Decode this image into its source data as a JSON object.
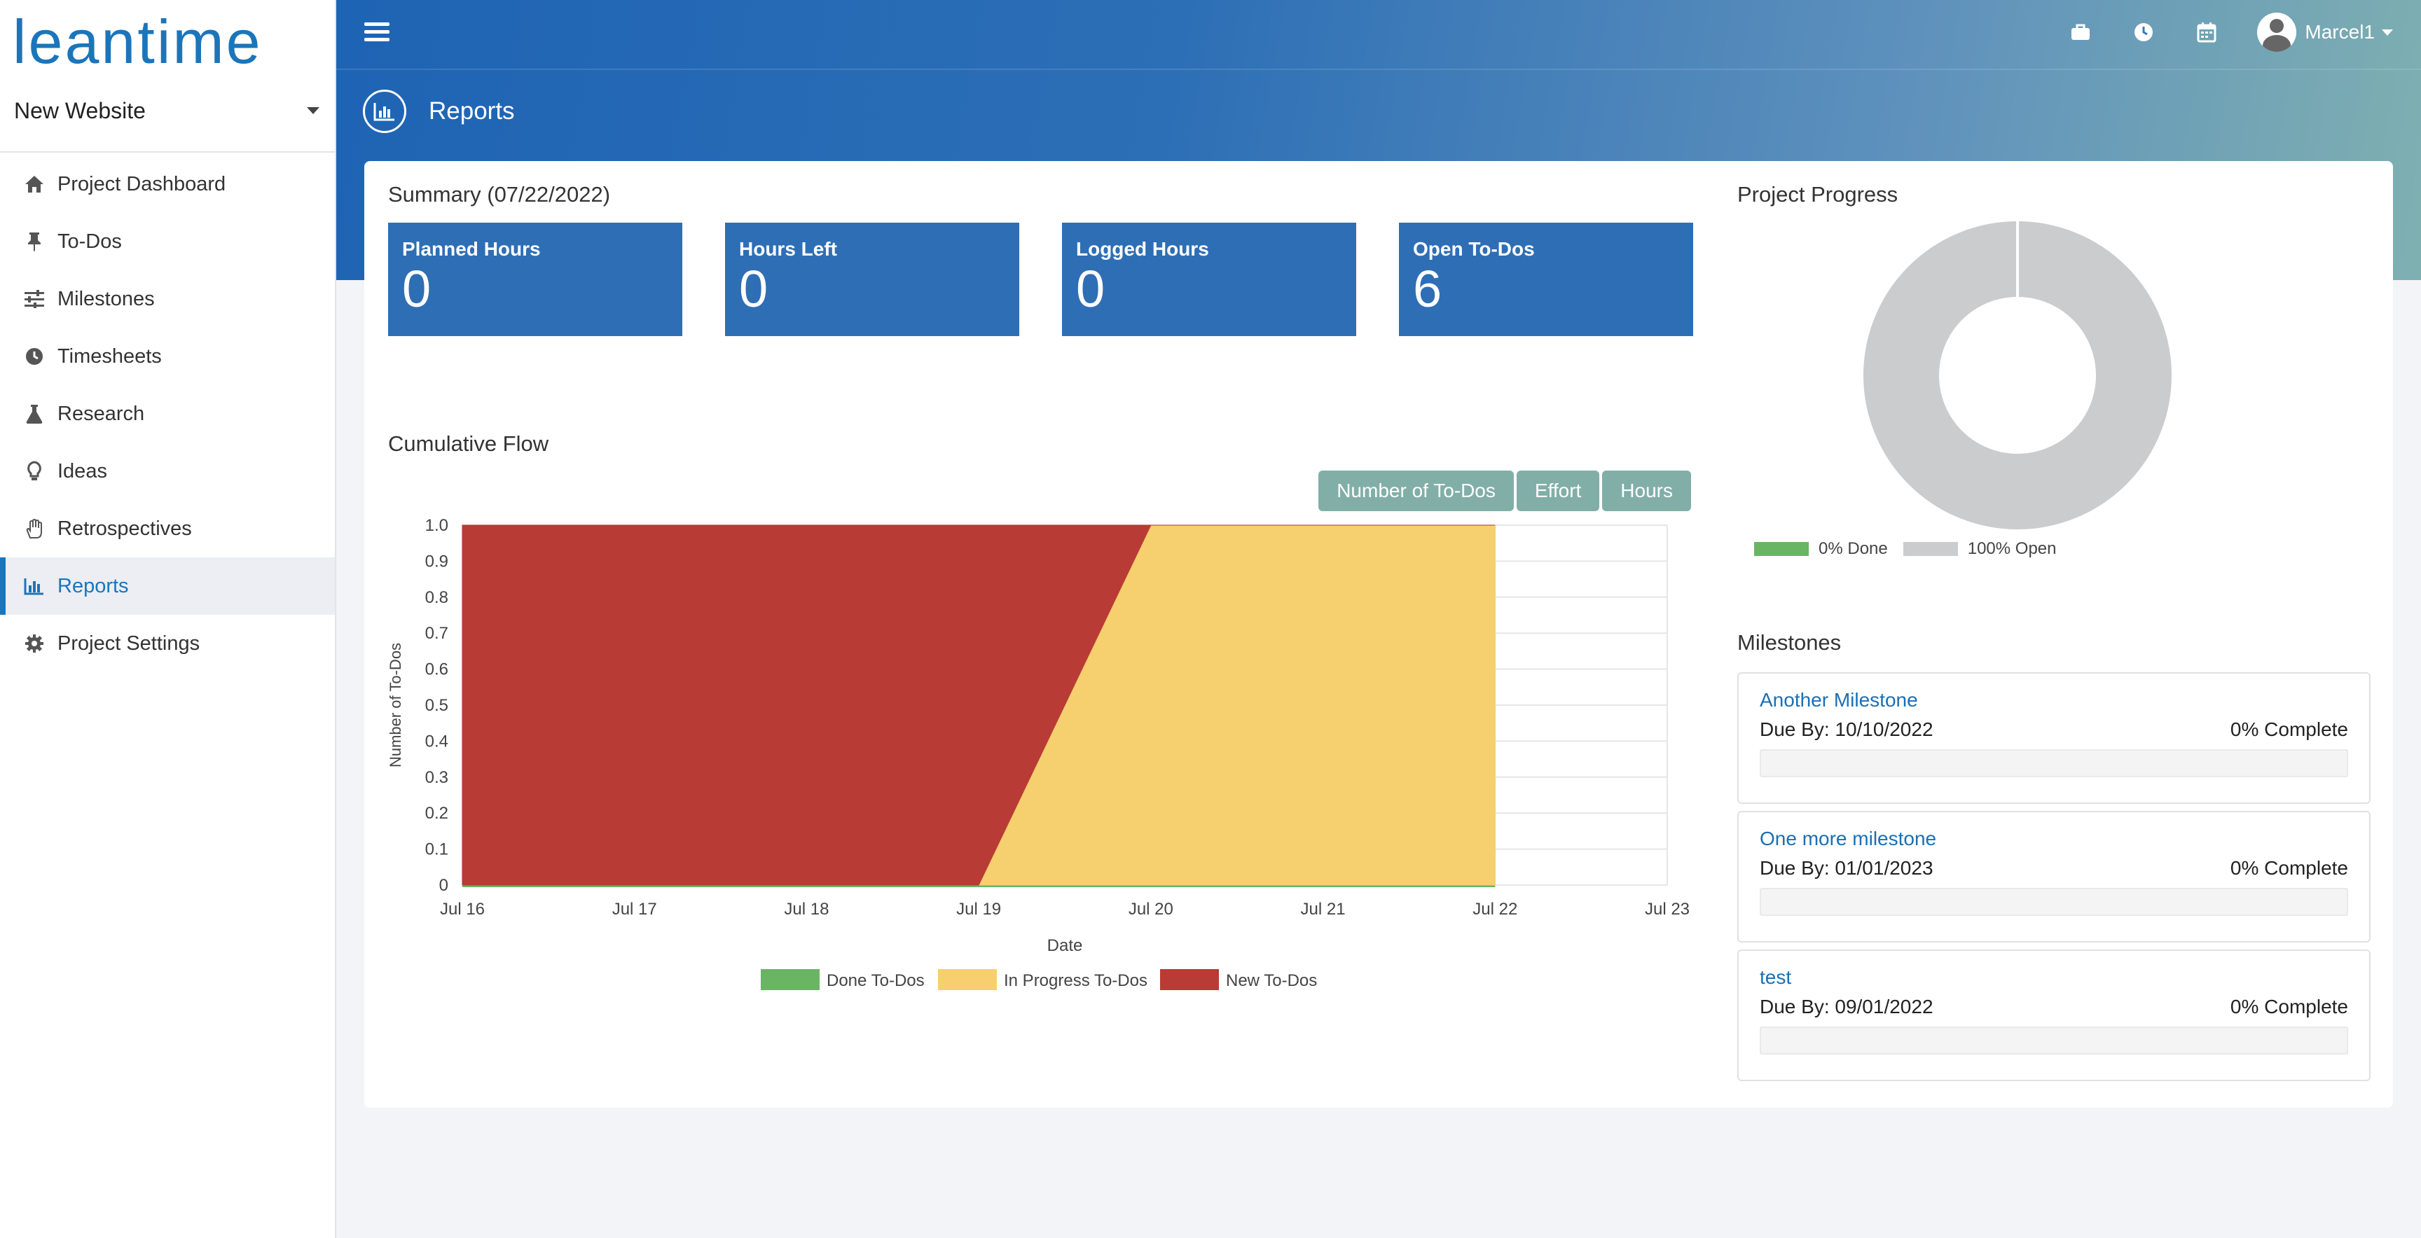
{
  "app": {
    "logo_text": "leantime"
  },
  "sidebar": {
    "project_name": "New Website",
    "items": [
      {
        "label": "Project Dashboard",
        "icon": "home-icon"
      },
      {
        "label": "To-Dos",
        "icon": "thumbtack-icon"
      },
      {
        "label": "Milestones",
        "icon": "sliders-icon"
      },
      {
        "label": "Timesheets",
        "icon": "clock-icon"
      },
      {
        "label": "Research",
        "icon": "flask-icon"
      },
      {
        "label": "Ideas",
        "icon": "lightbulb-icon"
      },
      {
        "label": "Retrospectives",
        "icon": "hand-icon"
      },
      {
        "label": "Reports",
        "icon": "bar-chart-icon",
        "active": true
      },
      {
        "label": "Project Settings",
        "icon": "gear-icon"
      }
    ]
  },
  "header": {
    "page_title": "Reports",
    "user_name": "Marcel1",
    "nav_icons": [
      "briefcase-icon",
      "clock-icon",
      "calendar-icon"
    ]
  },
  "summary": {
    "title": "Summary (07/22/2022)",
    "stats": [
      {
        "label": "Planned Hours",
        "value": "0"
      },
      {
        "label": "Hours Left",
        "value": "0"
      },
      {
        "label": "Logged Hours",
        "value": "0"
      },
      {
        "label": "Open To-Dos",
        "value": "6"
      }
    ]
  },
  "cumulative_flow": {
    "title": "Cumulative Flow",
    "buttons": [
      "Number of To-Dos",
      "Effort",
      "Hours"
    ]
  },
  "progress": {
    "title": "Project Progress",
    "legend": [
      {
        "label": "0% Done",
        "color": "#6ab563"
      },
      {
        "label": "100% Open",
        "color": "#cbccce"
      }
    ],
    "done_fraction": 0.0,
    "open_fraction": 1.0
  },
  "milestones": {
    "title": "Milestones",
    "items": [
      {
        "title": "Another Milestone",
        "due": "Due By: 10/10/2022",
        "complete": "0% Complete",
        "progress": 0
      },
      {
        "title": "One more milestone",
        "due": "Due By: 01/01/2023",
        "complete": "0% Complete",
        "progress": 0
      },
      {
        "title": "test",
        "due": "Due By: 09/01/2022",
        "complete": "0% Complete",
        "progress": 0
      }
    ]
  },
  "chart_data": {
    "type": "area",
    "stacked": true,
    "xlabel": "Date",
    "ylabel": "Number of To-Dos",
    "x": [
      "Jul 16",
      "Jul 17",
      "Jul 18",
      "Jul 19",
      "Jul 20",
      "Jul 21",
      "Jul 22"
    ],
    "x_ticks": [
      "Jul 16",
      "Jul 17",
      "Jul 18",
      "Jul 19",
      "Jul 20",
      "Jul 21",
      "Jul 22",
      "Jul 23"
    ],
    "y_ticks": [
      "0",
      "0.1",
      "0.2",
      "0.3",
      "0.4",
      "0.5",
      "0.6",
      "0.7",
      "0.8",
      "0.9",
      "1.0"
    ],
    "ylim": [
      0,
      1.0
    ],
    "grid": true,
    "legend_position": "bottom",
    "series": [
      {
        "name": "Done To-Dos",
        "color": "#6ab563",
        "values": [
          0,
          0,
          0,
          0,
          0,
          0,
          0
        ]
      },
      {
        "name": "In Progress To-Dos",
        "color": "#f6cf6e",
        "values": [
          0,
          0,
          0,
          0,
          1,
          1,
          1
        ]
      },
      {
        "name": "New To-Dos",
        "color": "#b93b35",
        "values": [
          1,
          1,
          1,
          1,
          0,
          0,
          0
        ]
      }
    ]
  }
}
